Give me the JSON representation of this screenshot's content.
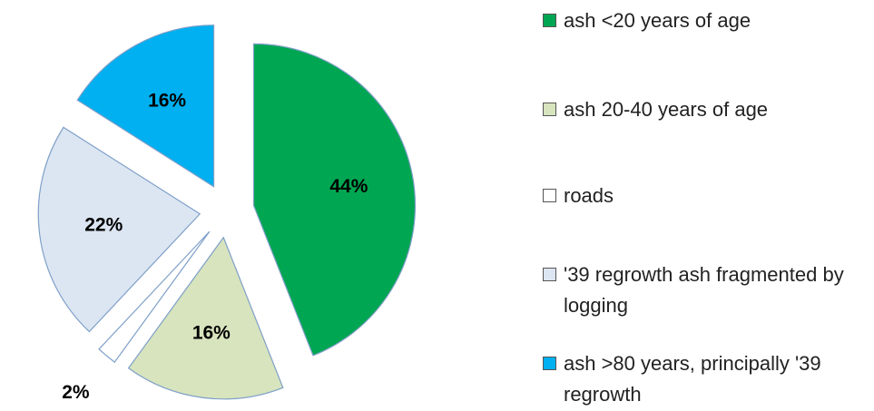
{
  "chart_data": {
    "type": "pie",
    "categories": [
      "ash <20 years of age",
      "ash 20-40 years of age",
      "roads",
      "'39 regrowth ash fragmented by logging",
      "ash >80 years, principally '39 regrowth"
    ],
    "values": [
      44,
      16,
      2,
      22,
      16
    ],
    "value_labels": [
      "44%",
      "16%",
      "2%",
      "22%",
      "16%"
    ],
    "colors": [
      "#00a651",
      "#d7e4bd",
      "#ffffff",
      "#dce6f2",
      "#00b0f0"
    ],
    "legend": "right"
  }
}
